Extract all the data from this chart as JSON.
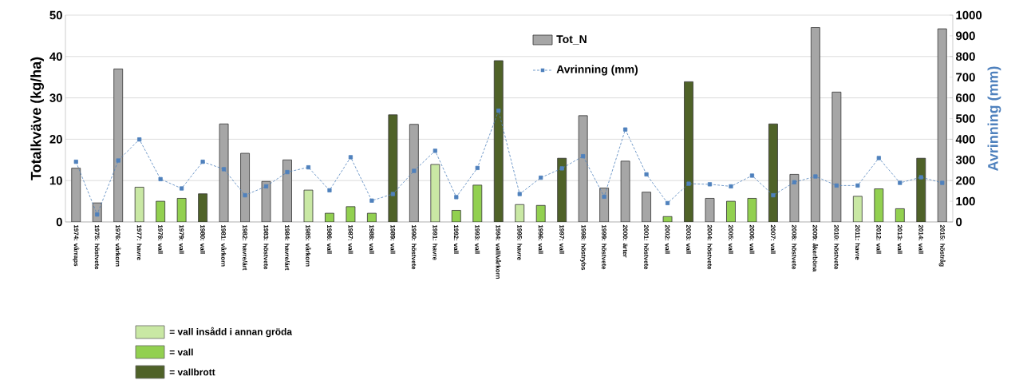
{
  "chart_data": {
    "type": "bar",
    "categories": [
      "1974: vårraps",
      "1975: höstvete",
      "1976: vårkorn",
      "1977: havre",
      "1978: vall",
      "1979: vall",
      "1980: vall",
      "1981: vårkorn",
      "1982: havre/ärt",
      "1983: höstvete",
      "1984: havre/ärt",
      "1985: vårkorn",
      "1986: vall",
      "1987: vall",
      "1988: vall",
      "1989: vall",
      "1990: höstvete",
      "1991: havre",
      "1992: vall",
      "1993: vall",
      "1994: vall/vårkorn",
      "1995: havre",
      "1996: vall",
      "1997: vall",
      "1998: höstrybs",
      "1999: höstvete",
      "2000: ärter",
      "2001: höstvete",
      "2002: vall",
      "2003: vall",
      "2004: höstvete",
      "2005: vall",
      "2006: vall",
      "2007: vall",
      "2008: höstvete",
      "2009: åkerböna",
      "2010: höstvete",
      "2011: havre",
      "2012: vall",
      "2013: vall",
      "2014: vall",
      "2015: höstråg"
    ],
    "series": [
      {
        "name": "Tot_N",
        "color": "#a6a6a6",
        "values": [
          13.0,
          4.6,
          37.0,
          null,
          null,
          null,
          null,
          23.7,
          16.6,
          9.8,
          15.0,
          null,
          null,
          null,
          null,
          null,
          23.6,
          null,
          null,
          null,
          null,
          null,
          null,
          null,
          25.7,
          8.2,
          14.7,
          7.2,
          null,
          null,
          5.7,
          null,
          null,
          null,
          11.5,
          47.0,
          31.4,
          null,
          null,
          null,
          null,
          46.7
        ]
      },
      {
        "name": "= vall insådd i annan gröda",
        "color": "#c9e8a4",
        "values": [
          null,
          null,
          null,
          8.4,
          null,
          null,
          null,
          null,
          null,
          null,
          null,
          7.7,
          null,
          null,
          null,
          null,
          null,
          13.9,
          null,
          null,
          null,
          4.2,
          null,
          null,
          null,
          null,
          null,
          null,
          null,
          null,
          null,
          null,
          null,
          null,
          null,
          null,
          null,
          6.2,
          null,
          null,
          null,
          null
        ]
      },
      {
        "name": "= vall",
        "color": "#92d050",
        "values": [
          null,
          null,
          null,
          null,
          5.0,
          5.7,
          null,
          null,
          null,
          null,
          null,
          null,
          2.1,
          3.7,
          2.1,
          null,
          null,
          null,
          2.8,
          8.9,
          null,
          null,
          4.0,
          null,
          null,
          null,
          null,
          null,
          1.3,
          null,
          null,
          5.0,
          5.7,
          null,
          null,
          null,
          null,
          null,
          8.0,
          3.2,
          null,
          null
        ]
      },
      {
        "name": "= vallbrott",
        "color": "#4f6228",
        "values": [
          null,
          null,
          null,
          null,
          null,
          null,
          6.8,
          null,
          null,
          null,
          null,
          null,
          null,
          null,
          null,
          25.9,
          null,
          null,
          null,
          null,
          39.0,
          null,
          null,
          15.4,
          null,
          null,
          null,
          null,
          null,
          33.9,
          null,
          null,
          null,
          23.7,
          null,
          null,
          null,
          null,
          null,
          null,
          15.4,
          null
        ]
      },
      {
        "name": "Avrinning (mm)",
        "type": "line",
        "axis": "y2",
        "color": "#4f81bd",
        "values": [
          291,
          36,
          297,
          399,
          207,
          162,
          291,
          255,
          129,
          172,
          241,
          264,
          153,
          313,
          103,
          135,
          247,
          344,
          120,
          261,
          538,
          135,
          214,
          259,
          318,
          122,
          447,
          230,
          91,
          185,
          182,
          172,
          224,
          129,
          192,
          220,
          176,
          176,
          309,
          189,
          216,
          189
        ]
      }
    ],
    "ylabel": "Totalkväve (kg/ha)",
    "y2label": "Avrinning (mm)",
    "ylim": [
      0,
      50
    ],
    "yticks": [
      0,
      10,
      20,
      30,
      40,
      50
    ],
    "y2lim": [
      0,
      1000
    ],
    "y2ticks": [
      0,
      100,
      200,
      300,
      400,
      500,
      600,
      700,
      800,
      900,
      1000
    ],
    "grid": "y",
    "legend": "bottom left",
    "marker": "square",
    "line_style": "dashed"
  }
}
